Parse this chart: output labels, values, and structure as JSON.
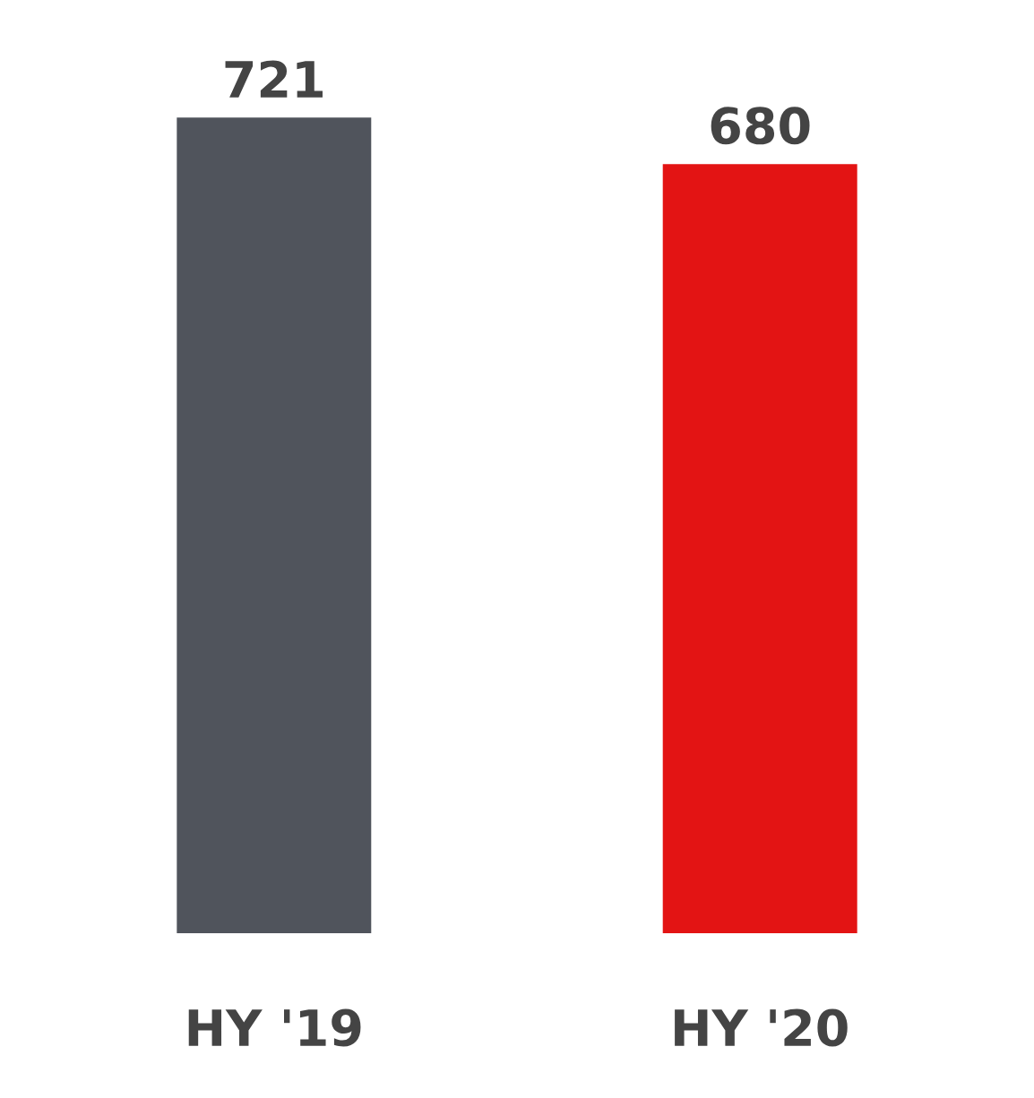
{
  "chart_data": {
    "type": "bar",
    "categories": [
      "HY '19",
      "HY '20"
    ],
    "values": [
      721,
      680
    ],
    "colors": [
      "#50545c",
      "#e31414"
    ],
    "data_labels": true,
    "grid": false,
    "legend": false
  }
}
